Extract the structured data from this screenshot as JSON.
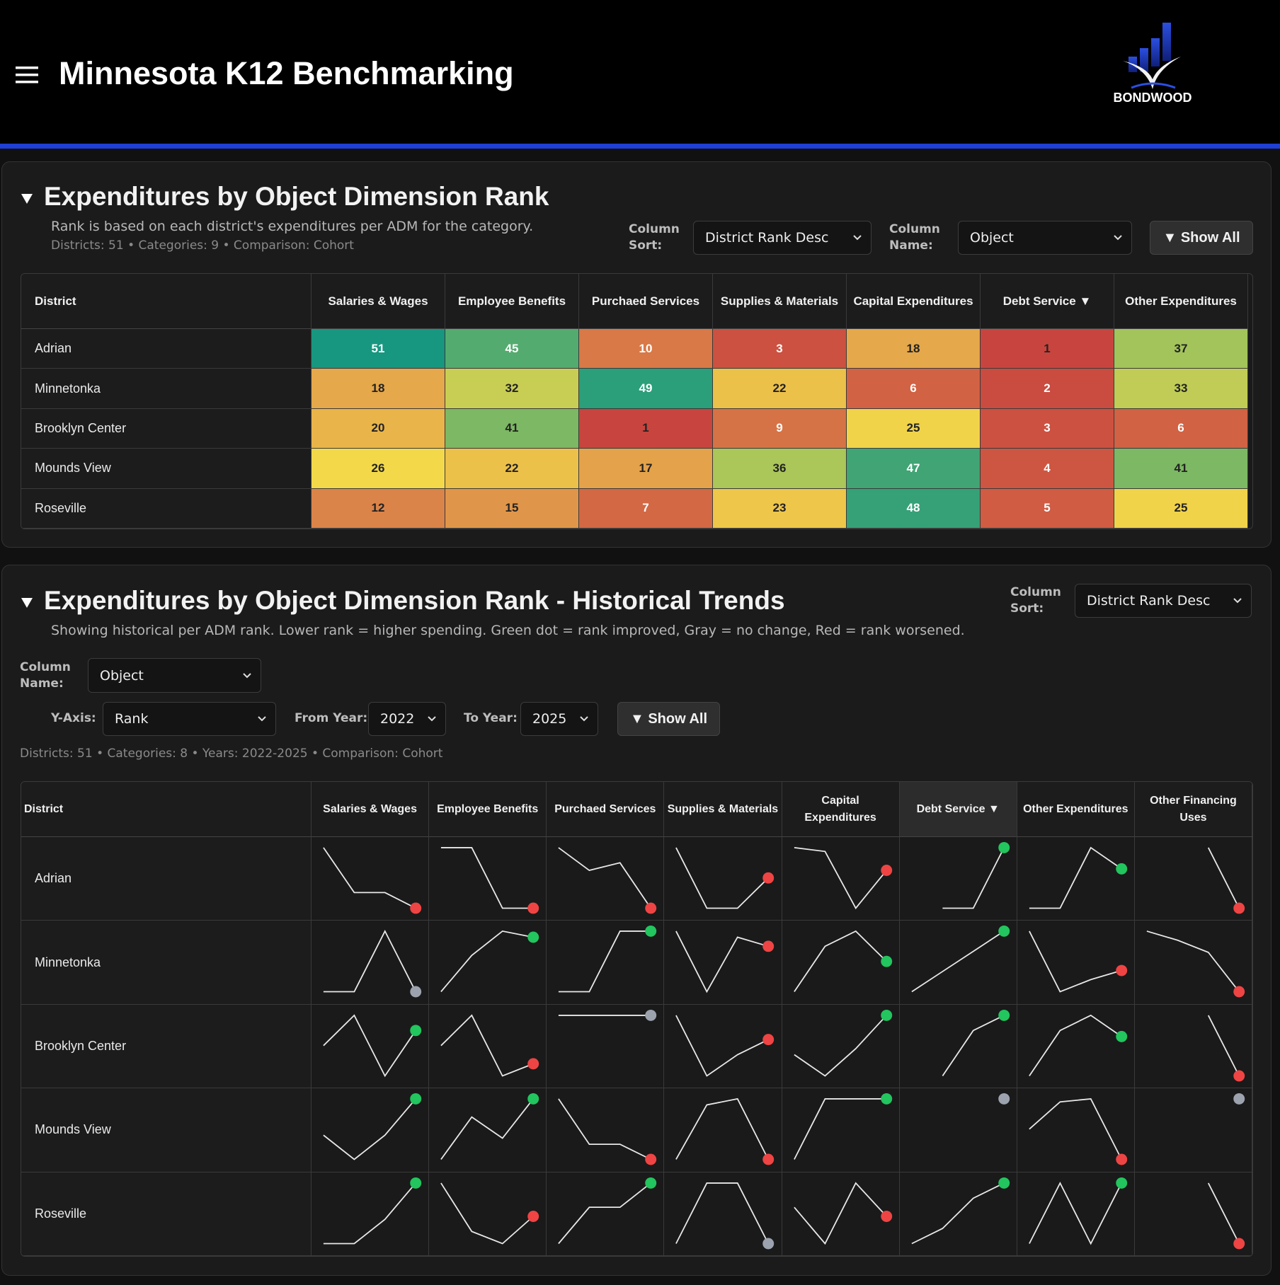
{
  "header": {
    "title": "Minnesota K12 Benchmarking",
    "logo": "BONDWOOD"
  },
  "rank_panel": {
    "title": "Expenditures by Object Dimension Rank",
    "description": "Rank is based on each district's expenditures per ADM for the category.",
    "stats": "Districts: 51 • Categories: 9 • Comparison: Cohort",
    "column_sort_label": "Column Sort:",
    "column_sort": "District Rank Desc",
    "column_name_label": "Column Name:",
    "column_name": "Object",
    "show_all": "▼ Show All",
    "table": {
      "columns": [
        "District",
        "Salaries & Wages",
        "Employee Benefits",
        "Purchaed Services",
        "Supplies & Materials",
        "Capital Expenditures",
        "Debt Service ▼",
        "Other Expenditures"
      ],
      "rows": [
        {
          "district": "Adrian",
          "ranks": [
            51,
            45,
            10,
            3,
            18,
            1,
            37
          ]
        },
        {
          "district": "Minnetonka",
          "ranks": [
            18,
            32,
            49,
            22,
            6,
            2,
            33
          ]
        },
        {
          "district": "Brooklyn Center",
          "ranks": [
            20,
            41,
            1,
            9,
            25,
            3,
            6
          ]
        },
        {
          "district": "Mounds View",
          "ranks": [
            26,
            22,
            17,
            36,
            47,
            4,
            41
          ]
        },
        {
          "district": "Roseville",
          "ranks": [
            12,
            15,
            7,
            23,
            48,
            5,
            25
          ]
        }
      ],
      "color_scale": [
        {
          "value": 1,
          "color": "#c8453f"
        },
        {
          "value": 13,
          "color": "#dd8a4a"
        },
        {
          "value": 26,
          "color": "#f3d94a"
        },
        {
          "value": 38,
          "color": "#9cc25c"
        },
        {
          "value": 51,
          "color": "#17977f"
        }
      ]
    }
  },
  "trends_panel": {
    "title": "Expenditures by Object Dimension Rank - Historical Trends",
    "description": "Showing historical per ADM rank. Lower rank = higher spending. Green dot = rank improved, Gray = no change, Red = rank worsened.",
    "column_sort_label": "Column Sort:",
    "column_sort": "District Rank Desc",
    "column_name_label": "Column Name:",
    "column_name": "Object",
    "y_axis_label": "Y-Axis:",
    "y_axis": "Rank",
    "from_year_label": "From Year:",
    "from_year": "2022",
    "to_year_label": "To Year:",
    "to_year": "2025",
    "show_all": "▼ Show All",
    "stats": "Districts: 51 • Categories: 8 • Years: 2022-2025 • Comparison: Cohort",
    "table": {
      "columns": [
        "District",
        "Salaries & Wages",
        "Employee Benefits",
        "Purchaed Services",
        "Supplies & Materials",
        "Capital Expenditures",
        "Debt Service ▼",
        "Other Expenditures",
        "Other Financing Uses"
      ],
      "line_color": "#e8e8e8",
      "rows": [
        {
          "district": "Adrian",
          "trends": [
            {
              "values": [
                20,
                43,
                43,
                51
              ],
              "dot": "#ef4444"
            },
            {
              "values": [
                10,
                10,
                45,
                45
              ],
              "dot": "#ef4444"
            },
            {
              "values": [
                2,
                5,
                4,
                10
              ],
              "dot": "#ef4444"
            },
            {
              "values": [
                1,
                5,
                5,
                3
              ],
              "dot": "#ef4444"
            },
            {
              "values": [
                12,
                13,
                28,
                18
              ],
              "dot": "#ef4444"
            },
            {
              "values": [
                null,
                6,
                6,
                1
              ],
              "dot": "#22c55e"
            },
            {
              "values": [
                50,
                50,
                30,
                37
              ],
              "dot": "#22c55e"
            },
            {
              "values": [
                null,
                null,
                20,
                40
              ],
              "dot": "#ef4444"
            }
          ]
        },
        {
          "district": "Minnetonka",
          "trends": [
            {
              "values": [
                30,
                30,
                10,
                30
              ],
              "dot": "#9ca3af"
            },
            {
              "values": [
                40,
                28,
                20,
                22
              ],
              "dot": "#22c55e"
            },
            {
              "values": [
                45,
                45,
                10,
                10
              ],
              "dot": "#22c55e"
            },
            {
              "values": [
                10,
                30,
                12,
                15
              ],
              "dot": "#ef4444"
            },
            {
              "values": [
                30,
                15,
                10,
                20
              ],
              "dot": "#22c55e"
            },
            {
              "values": [
                20,
                15,
                10,
                5
              ],
              "dot": "#22c55e"
            },
            {
              "values": [
                10,
                30,
                26,
                23
              ],
              "dot": "#ef4444"
            },
            {
              "values": [
                10,
                13,
                17,
                30
              ],
              "dot": "#ef4444"
            }
          ]
        },
        {
          "district": "Brooklyn Center",
          "trends": [
            {
              "values": [
                20,
                10,
                30,
                15
              ],
              "dot": "#22c55e"
            },
            {
              "values": [
                20,
                10,
                30,
                26
              ],
              "dot": "#ef4444"
            },
            {
              "values": [
                1,
                1,
                1,
                1
              ],
              "dot": "#9ca3af"
            },
            {
              "values": [
                10,
                30,
                23,
                18
              ],
              "dot": "#ef4444"
            },
            {
              "values": [
                23,
                30,
                21,
                10
              ],
              "dot": "#22c55e"
            },
            {
              "values": [
                null,
                30,
                15,
                10
              ],
              "dot": "#22c55e"
            },
            {
              "values": [
                30,
                15,
                10,
                17
              ],
              "dot": "#22c55e"
            },
            {
              "values": [
                null,
                null,
                10,
                30
              ],
              "dot": "#ef4444"
            }
          ]
        },
        {
          "district": "Mounds View",
          "trends": [
            {
              "values": [
                22,
                30,
                22,
                10
              ],
              "dot": "#22c55e"
            },
            {
              "values": [
                30,
                16,
                23,
                10
              ],
              "dot": "#22c55e"
            },
            {
              "values": [
                10,
                25,
                25,
                30
              ],
              "dot": "#ef4444"
            },
            {
              "values": [
                30,
                12,
                10,
                30
              ],
              "dot": "#ef4444"
            },
            {
              "values": [
                30,
                10,
                10,
                10
              ],
              "dot": "#22c55e"
            },
            {
              "values": [
                null,
                null,
                null,
                5
              ],
              "dot": "#9ca3af"
            },
            {
              "values": [
                20,
                11,
                10,
                30
              ],
              "dot": "#ef4444"
            },
            {
              "values": [
                null,
                null,
                null,
                8
              ],
              "dot": "#9ca3af"
            }
          ]
        },
        {
          "district": "Roseville",
          "trends": [
            {
              "values": [
                30,
                30,
                22,
                10
              ],
              "dot": "#22c55e"
            },
            {
              "values": [
                10,
                26,
                30,
                21
              ],
              "dot": "#ef4444"
            },
            {
              "values": [
                30,
                18,
                18,
                10
              ],
              "dot": "#22c55e"
            },
            {
              "values": [
                30,
                10,
                10,
                30
              ],
              "dot": "#9ca3af"
            },
            {
              "values": [
                18,
                30,
                10,
                21
              ],
              "dot": "#ef4444"
            },
            {
              "values": [
                30,
                25,
                15,
                10
              ],
              "dot": "#22c55e"
            },
            {
              "values": [
                30,
                10,
                30,
                10
              ],
              "dot": "#22c55e"
            },
            {
              "values": [
                null,
                null,
                10,
                30
              ],
              "dot": "#ef4444"
            }
          ]
        }
      ]
    }
  }
}
